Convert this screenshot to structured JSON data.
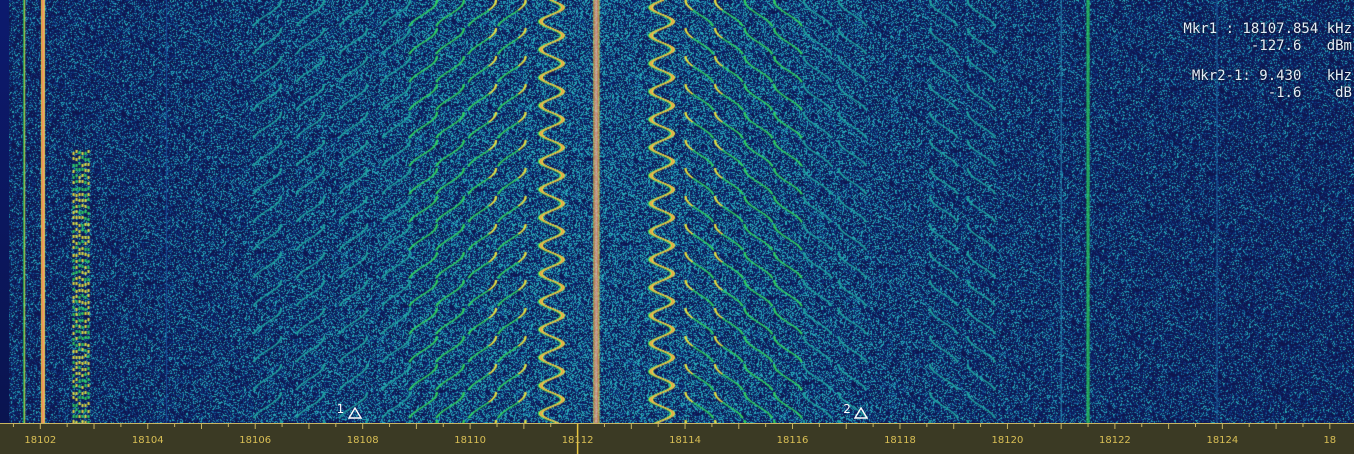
{
  "readout": {
    "mkr1_freq": "Mkr1 : 18107.854 kHz",
    "mkr1_level": "-127.6   dBm",
    "mkr2_delta_freq": "Mkr2-1: 9.430   kHz",
    "mkr2_delta_level": "-1.6    dB"
  },
  "markers": [
    {
      "label": "1",
      "freq_khz": 18107.85
    },
    {
      "label": "2",
      "freq_khz": 18117.28
    }
  ],
  "axis": {
    "unit_hidden": true,
    "labels": [
      "18102",
      "18104",
      "18106",
      "18108",
      "18110",
      "18112",
      "18114",
      "18116",
      "18118",
      "18120",
      "18122",
      "18124",
      "18"
    ],
    "start_khz": 18101.25,
    "end_khz": 18126.45,
    "center_khz": 18112
  },
  "colors": {
    "background": "#0b1036",
    "axis_bg": "#3b3a24",
    "axis_text": "#d9bf55",
    "signal_green": "#22d35a",
    "signal_yellow": "#e8e040",
    "signal_orange": "#f08a5a",
    "noise_cyan": "#2aa0b8"
  },
  "signals": {
    "left_carrier_khz": 18102.05,
    "center_carrier_khz": 18112.35,
    "right_carrier_khz": 18121.5,
    "faint_line_khz": 18121.0
  }
}
